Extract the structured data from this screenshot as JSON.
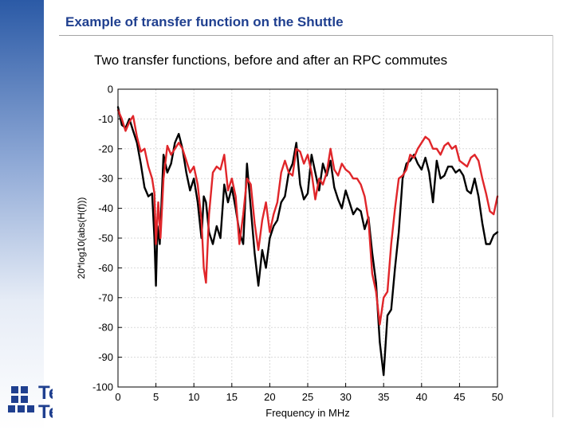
{
  "slide": {
    "title": "Example of transfer function on the Shuttle",
    "subtitle": "Two transfer functions, before and after an RPC commutes"
  },
  "logo": {
    "line1": "Te",
    "line2": "Te"
  },
  "colors": {
    "accent": "#1f3f8f",
    "series_before": "#000000",
    "series_after": "#e0262a",
    "grid": "#d9d9d9"
  },
  "chart_data": {
    "type": "line",
    "title": "",
    "xlabel": "Frequency in MHz",
    "ylabel": "20*log10(abs(H(f)))",
    "xlim": [
      0,
      50
    ],
    "ylim": [
      -100,
      0
    ],
    "xticks": [
      0,
      5,
      10,
      15,
      20,
      25,
      30,
      35,
      40,
      45,
      50
    ],
    "yticks": [
      0,
      -10,
      -20,
      -30,
      -40,
      -50,
      -60,
      -70,
      -80,
      -90,
      -100
    ],
    "grid": true,
    "series": [
      {
        "color": "#000000",
        "x": [
          0,
          0.5,
          1,
          1.5,
          2,
          2.5,
          3,
          3.5,
          4,
          4.5,
          4.8,
          5,
          5.2,
          5.5,
          6,
          6.5,
          7,
          7.5,
          8,
          8.5,
          9,
          9.5,
          10,
          10.5,
          11,
          11.3,
          11.6,
          12,
          12.5,
          13,
          13.5,
          14,
          14.5,
          15,
          15.5,
          16,
          16.5,
          17,
          17.5,
          18,
          18.5,
          19,
          19.5,
          20,
          20.5,
          21,
          21.5,
          22,
          22.5,
          23,
          23.5,
          24,
          24.5,
          25,
          25.5,
          26,
          26.5,
          27,
          27.5,
          28,
          28.5,
          29,
          29.5,
          30,
          30.5,
          31,
          31.5,
          32,
          32.5,
          33,
          33.5,
          34,
          34.5,
          35,
          35.5,
          36,
          36.5,
          37,
          37.5,
          38,
          38.5,
          39,
          39.5,
          40,
          40.5,
          41,
          41.5,
          42,
          42.5,
          43,
          43.5,
          44,
          44.5,
          45,
          45.5,
          46,
          46.5,
          47,
          47.5,
          48,
          48.5,
          49,
          49.5,
          50
        ],
        "y": [
          -6,
          -12,
          -13,
          -10,
          -14,
          -18,
          -25,
          -33,
          -36,
          -35,
          -50,
          -66,
          -46,
          -52,
          -22,
          -28,
          -25,
          -18,
          -15,
          -20,
          -28,
          -34,
          -30,
          -38,
          -50,
          -36,
          -38,
          -48,
          -52,
          -46,
          -50,
          -32,
          -38,
          -33,
          -40,
          -48,
          -52,
          -25,
          -40,
          -55,
          -66,
          -54,
          -60,
          -50,
          -46,
          -44,
          -38,
          -36,
          -28,
          -25,
          -18,
          -32,
          -37,
          -35,
          -22,
          -28,
          -34,
          -25,
          -29,
          -24,
          -33,
          -37,
          -40,
          -34,
          -38,
          -42,
          -40,
          -41,
          -47,
          -43,
          -55,
          -65,
          -85,
          -96,
          -76,
          -74,
          -60,
          -48,
          -30,
          -25,
          -24,
          -22,
          -25,
          -27,
          -23,
          -28,
          -38,
          -24,
          -30,
          -29,
          -26,
          -26,
          -28,
          -27,
          -29,
          -34,
          -35,
          -30,
          -36,
          -45,
          -52,
          -52,
          -49,
          -48
        ]
      },
      {
        "color": "#e0262a",
        "x": [
          0,
          0.5,
          1,
          1.5,
          2,
          2.5,
          3,
          3.5,
          4,
          4.5,
          4.8,
          5,
          5.3,
          5.6,
          6,
          6.5,
          7,
          7.5,
          8,
          8.5,
          9,
          9.5,
          10,
          10.5,
          11,
          11.3,
          11.6,
          12,
          12.5,
          13,
          13.5,
          14,
          14.5,
          15,
          15.5,
          16,
          16.5,
          17,
          17.5,
          18,
          18.5,
          19,
          19.5,
          20,
          20.5,
          21,
          21.5,
          22,
          22.5,
          23,
          23.5,
          24,
          24.5,
          25,
          25.5,
          26,
          26.5,
          27,
          27.5,
          28,
          28.5,
          29,
          29.5,
          30,
          30.5,
          31,
          31.5,
          32,
          32.5,
          33,
          33.5,
          34,
          34.5,
          35,
          35.5,
          36,
          36.5,
          37,
          37.5,
          38,
          38.5,
          39,
          39.5,
          40,
          40.5,
          41,
          41.5,
          42,
          42.5,
          43,
          43.5,
          44,
          44.5,
          45,
          45.5,
          46,
          46.5,
          47,
          47.5,
          48,
          48.5,
          49,
          49.5,
          50
        ],
        "y": [
          -7,
          -10,
          -14,
          -11,
          -9,
          -16,
          -21,
          -20,
          -26,
          -30,
          -35,
          -52,
          -38,
          -50,
          -30,
          -19,
          -22,
          -20,
          -18,
          -20,
          -24,
          -28,
          -26,
          -32,
          -44,
          -60,
          -65,
          -42,
          -28,
          -26,
          -27,
          -22,
          -34,
          -30,
          -36,
          -52,
          -42,
          -30,
          -32,
          -45,
          -54,
          -44,
          -38,
          -48,
          -42,
          -38,
          -28,
          -24,
          -28,
          -29,
          -20,
          -21,
          -25,
          -22,
          -28,
          -37,
          -30,
          -32,
          -28,
          -20,
          -27,
          -29,
          -25,
          -27,
          -28,
          -30,
          -30,
          -32,
          -36,
          -44,
          -62,
          -68,
          -79,
          -70,
          -68,
          -52,
          -40,
          -30,
          -29,
          -27,
          -22,
          -23,
          -20,
          -18,
          -16,
          -17,
          -20,
          -20,
          -22,
          -19,
          -18,
          -20,
          -19,
          -24,
          -25,
          -26,
          -23,
          -22,
          -24,
          -30,
          -35,
          -41,
          -42,
          -36
        ]
      }
    ]
  }
}
